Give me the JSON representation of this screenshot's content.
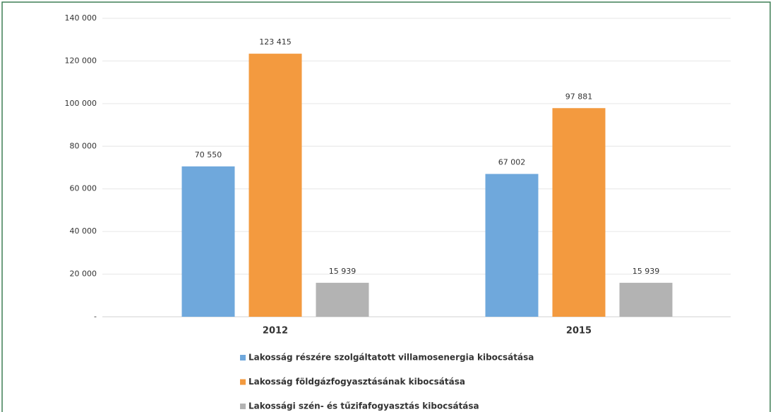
{
  "chart_data": {
    "type": "bar",
    "categories": [
      "2012",
      "2015"
    ],
    "series": [
      {
        "name": "Lakosság részére szolgáltatott villamosenergia kibocsátása",
        "color": "#6fa8dc",
        "values": [
          70550,
          67002
        ],
        "value_labels": [
          "70 550",
          "67 002"
        ]
      },
      {
        "name": "Lakosság földgázfogyasztásának kibocsátása",
        "color": "#f39a3f",
        "values": [
          123415,
          97881
        ],
        "value_labels": [
          "123 415",
          "97 881"
        ]
      },
      {
        "name": "Lakossági szén- és tűzifafogyasztás kibocsátása",
        "color": "#b3b3b3",
        "values": [
          15939,
          15939
        ],
        "value_labels": [
          "15 939",
          "15 939"
        ]
      }
    ],
    "ylim": [
      0,
      140000
    ],
    "yticks": [
      {
        "value": 0,
        "label": "-"
      },
      {
        "value": 20000,
        "label": "20 000"
      },
      {
        "value": 40000,
        "label": "40 000"
      },
      {
        "value": 60000,
        "label": "60 000"
      },
      {
        "value": 80000,
        "label": "80 000"
      },
      {
        "value": 100000,
        "label": "100 000"
      },
      {
        "value": 120000,
        "label": "120 000"
      },
      {
        "value": 140000,
        "label": "140 000"
      }
    ],
    "grid": true,
    "legend": "bottom"
  }
}
